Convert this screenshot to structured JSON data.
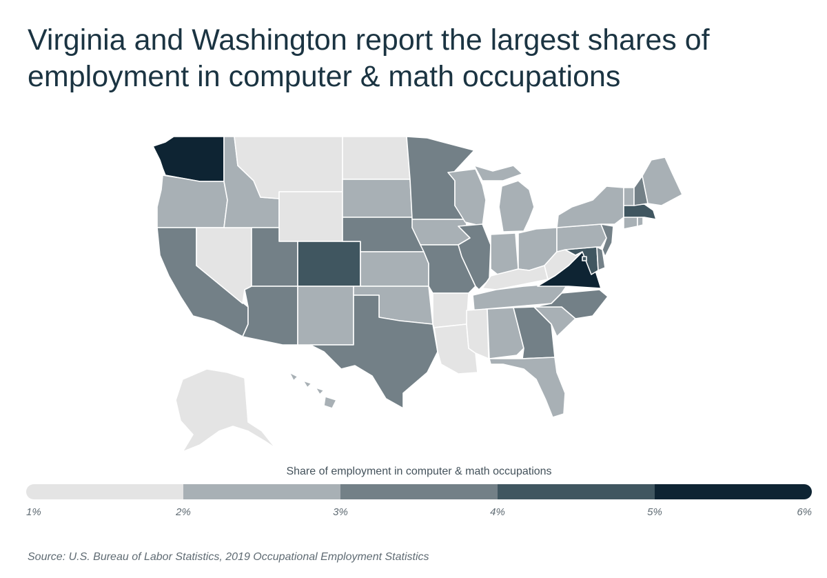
{
  "title_lines": [
    "Virginia and Washington report the largest shares of",
    "employment in computer & math occupations"
  ],
  "legend": {
    "title": "Share of employment in computer & math occupations",
    "ticks": [
      "1%",
      "2%",
      "3%",
      "4%",
      "5%",
      "6%"
    ],
    "colors": [
      "#e4e4e4",
      "#a8b0b5",
      "#738087",
      "#405660",
      "#0e2433"
    ]
  },
  "source": "Source: U.S. Bureau of Labor Statistics, 2019 Occupational Employment Statistics",
  "map_data": {
    "metric": "Share of employment in computer & math occupations",
    "bins": [
      "1%-2%",
      "2%-3%",
      "3%-4%",
      "4%-5%",
      "5%-6%"
    ],
    "states": [
      {
        "code": "WA",
        "name": "Washington",
        "bin": 4
      },
      {
        "code": "VA",
        "name": "Virginia",
        "bin": 4
      },
      {
        "code": "CO",
        "name": "Colorado",
        "bin": 3
      },
      {
        "code": "MD",
        "name": "Maryland",
        "bin": 3
      },
      {
        "code": "MA",
        "name": "Massachusetts",
        "bin": 3
      },
      {
        "code": "DC",
        "name": "District of Columbia",
        "bin": 3
      },
      {
        "code": "CA",
        "name": "California",
        "bin": 2
      },
      {
        "code": "UT",
        "name": "Utah",
        "bin": 2
      },
      {
        "code": "AZ",
        "name": "Arizona",
        "bin": 2
      },
      {
        "code": "TX",
        "name": "Texas",
        "bin": 2
      },
      {
        "code": "NE",
        "name": "Nebraska",
        "bin": 2
      },
      {
        "code": "MN",
        "name": "Minnesota",
        "bin": 2
      },
      {
        "code": "MO",
        "name": "Missouri",
        "bin": 2
      },
      {
        "code": "IL",
        "name": "Illinois",
        "bin": 2
      },
      {
        "code": "NC",
        "name": "North Carolina",
        "bin": 2
      },
      {
        "code": "GA",
        "name": "Georgia",
        "bin": 2
      },
      {
        "code": "NJ",
        "name": "New Jersey",
        "bin": 2
      },
      {
        "code": "DE",
        "name": "Delaware",
        "bin": 2
      },
      {
        "code": "NH",
        "name": "New Hampshire",
        "bin": 2
      },
      {
        "code": "OR",
        "name": "Oregon",
        "bin": 1
      },
      {
        "code": "ID",
        "name": "Idaho",
        "bin": 1
      },
      {
        "code": "SD",
        "name": "South Dakota",
        "bin": 1
      },
      {
        "code": "KS",
        "name": "Kansas",
        "bin": 1
      },
      {
        "code": "NM",
        "name": "New Mexico",
        "bin": 1
      },
      {
        "code": "OK",
        "name": "Oklahoma",
        "bin": 1
      },
      {
        "code": "IA",
        "name": "Iowa",
        "bin": 1
      },
      {
        "code": "WI",
        "name": "Wisconsin",
        "bin": 1
      },
      {
        "code": "MI",
        "name": "Michigan",
        "bin": 1
      },
      {
        "code": "IN",
        "name": "Indiana",
        "bin": 1
      },
      {
        "code": "OH",
        "name": "Ohio",
        "bin": 1
      },
      {
        "code": "TN",
        "name": "Tennessee",
        "bin": 1
      },
      {
        "code": "AL",
        "name": "Alabama",
        "bin": 1
      },
      {
        "code": "SC",
        "name": "South Carolina",
        "bin": 1
      },
      {
        "code": "FL",
        "name": "Florida",
        "bin": 1
      },
      {
        "code": "PA",
        "name": "Pennsylvania",
        "bin": 1
      },
      {
        "code": "NY",
        "name": "New York",
        "bin": 1
      },
      {
        "code": "VT",
        "name": "Vermont",
        "bin": 1
      },
      {
        "code": "ME",
        "name": "Maine",
        "bin": 1
      },
      {
        "code": "CT",
        "name": "Connecticut",
        "bin": 1
      },
      {
        "code": "RI",
        "name": "Rhode Island",
        "bin": 1
      },
      {
        "code": "HI",
        "name": "Hawaii",
        "bin": 1
      },
      {
        "code": "MT",
        "name": "Montana",
        "bin": 0
      },
      {
        "code": "WY",
        "name": "Wyoming",
        "bin": 0
      },
      {
        "code": "ND",
        "name": "North Dakota",
        "bin": 0
      },
      {
        "code": "NV",
        "name": "Nevada",
        "bin": 0
      },
      {
        "code": "AR",
        "name": "Arkansas",
        "bin": 0
      },
      {
        "code": "LA",
        "name": "Louisiana",
        "bin": 0
      },
      {
        "code": "MS",
        "name": "Mississippi",
        "bin": 0
      },
      {
        "code": "KY",
        "name": "Kentucky",
        "bin": 0
      },
      {
        "code": "WV",
        "name": "West Virginia",
        "bin": 0
      },
      {
        "code": "AK",
        "name": "Alaska",
        "bin": 0
      }
    ]
  }
}
